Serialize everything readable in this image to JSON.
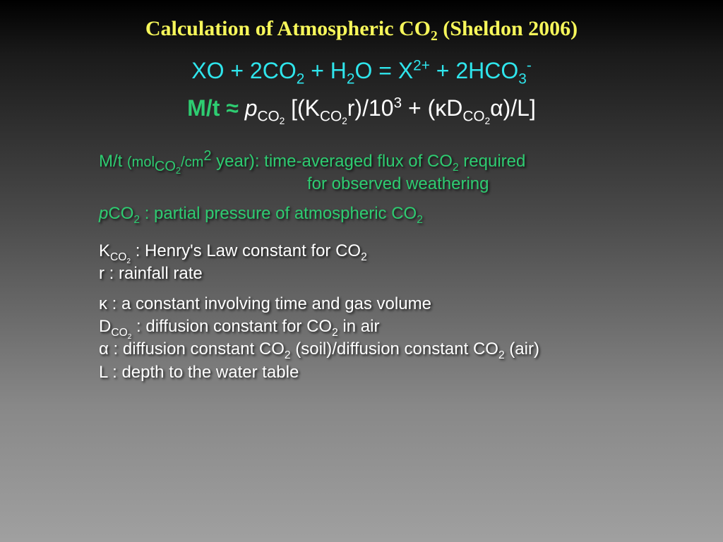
{
  "colors": {
    "title": "#f6f65a",
    "eq1": "#2fe5ec",
    "eq2_lhs": "#2ecc71",
    "eq2_rhs": "#ffffff",
    "green_def": "#2ecc71",
    "white_def": "#ffffff"
  },
  "fontsizes": {
    "title": 30,
    "equation": 32,
    "def": 24
  },
  "title": {
    "parts": [
      {
        "t": "Calculation of Atmospheric CO"
      },
      {
        "t": "2",
        "sub": true
      },
      {
        "t": " (Sheldon 2006)"
      }
    ]
  },
  "eq1": {
    "parts": [
      {
        "t": "XO + 2CO"
      },
      {
        "t": "2",
        "sub": true
      },
      {
        "t": " + H"
      },
      {
        "t": "2",
        "sub": true
      },
      {
        "t": "O = X"
      },
      {
        "t": "2+",
        "sup": true
      },
      {
        "t": " + 2HCO"
      },
      {
        "t": "3",
        "sub": true
      },
      {
        "t": "-",
        "sup": true
      }
    ]
  },
  "eq2_lhs": {
    "parts": [
      {
        "t": "M/t ≈ ",
        "bold": true
      }
    ]
  },
  "eq2_rhs": {
    "parts": [
      {
        "t": "p",
        "ital": true
      },
      {
        "t": "CO",
        "sub": true
      },
      {
        "t": "2",
        "subsub": true
      },
      {
        "t": " [(K"
      },
      {
        "t": "CO",
        "sub": true
      },
      {
        "t": "2",
        "subsub": true
      },
      {
        "t": "r)/10"
      },
      {
        "t": "3",
        "sup": true
      },
      {
        "t": " + (κD"
      },
      {
        "t": "CO",
        "sub": true
      },
      {
        "t": "2",
        "subsub": true
      },
      {
        "t": "α)/L]"
      }
    ]
  },
  "def_green_1a": {
    "parts": [
      {
        "t": "M/t ",
        "big": true
      },
      {
        "t": "(mol"
      },
      {
        "t": "CO",
        "sub": true
      },
      {
        "t": "2",
        "subsub": true
      },
      {
        "t": "/cm"
      },
      {
        "t": "2",
        "sup": true
      },
      {
        "t": " year): time-averaged flux of CO",
        "big": true
      },
      {
        "t": "2",
        "sub": true,
        "big": true
      },
      {
        "t": " required",
        "big": true
      }
    ]
  },
  "def_green_1b": {
    "parts": [
      {
        "t": "for observed weathering",
        "big": true
      }
    ]
  },
  "def_green_2": {
    "parts": [
      {
        "t": "p",
        "ital": true
      },
      {
        "t": "CO"
      },
      {
        "t": "2",
        "sub": true
      },
      {
        "t": " : partial pressure of atmospheric CO"
      },
      {
        "t": "2",
        "sub": true
      }
    ]
  },
  "def_white_1": {
    "parts": [
      {
        "t": "K"
      },
      {
        "t": "CO",
        "sub": true
      },
      {
        "t": "2",
        "subsub": true
      },
      {
        "t": " : Henry's Law constant for CO"
      },
      {
        "t": "2",
        "sub": true
      }
    ]
  },
  "def_white_2": {
    "parts": [
      {
        "t": "r : rainfall rate"
      }
    ]
  },
  "def_white_3": {
    "parts": [
      {
        "t": "κ : a constant involving time and gas volume"
      }
    ]
  },
  "def_white_4": {
    "parts": [
      {
        "t": "D"
      },
      {
        "t": "CO",
        "sub": true
      },
      {
        "t": "2",
        "subsub": true
      },
      {
        "t": " : diffusion constant for CO"
      },
      {
        "t": "2",
        "sub": true
      },
      {
        "t": " in air"
      }
    ]
  },
  "def_white_5": {
    "parts": [
      {
        "t": "α : diffusion constant CO"
      },
      {
        "t": "2",
        "sub": true
      },
      {
        "t": " (soil)/diffusion constant CO"
      },
      {
        "t": "2",
        "sub": true
      },
      {
        "t": " (air)"
      }
    ]
  },
  "def_white_6": {
    "parts": [
      {
        "t": "L : depth to the water table"
      }
    ]
  }
}
